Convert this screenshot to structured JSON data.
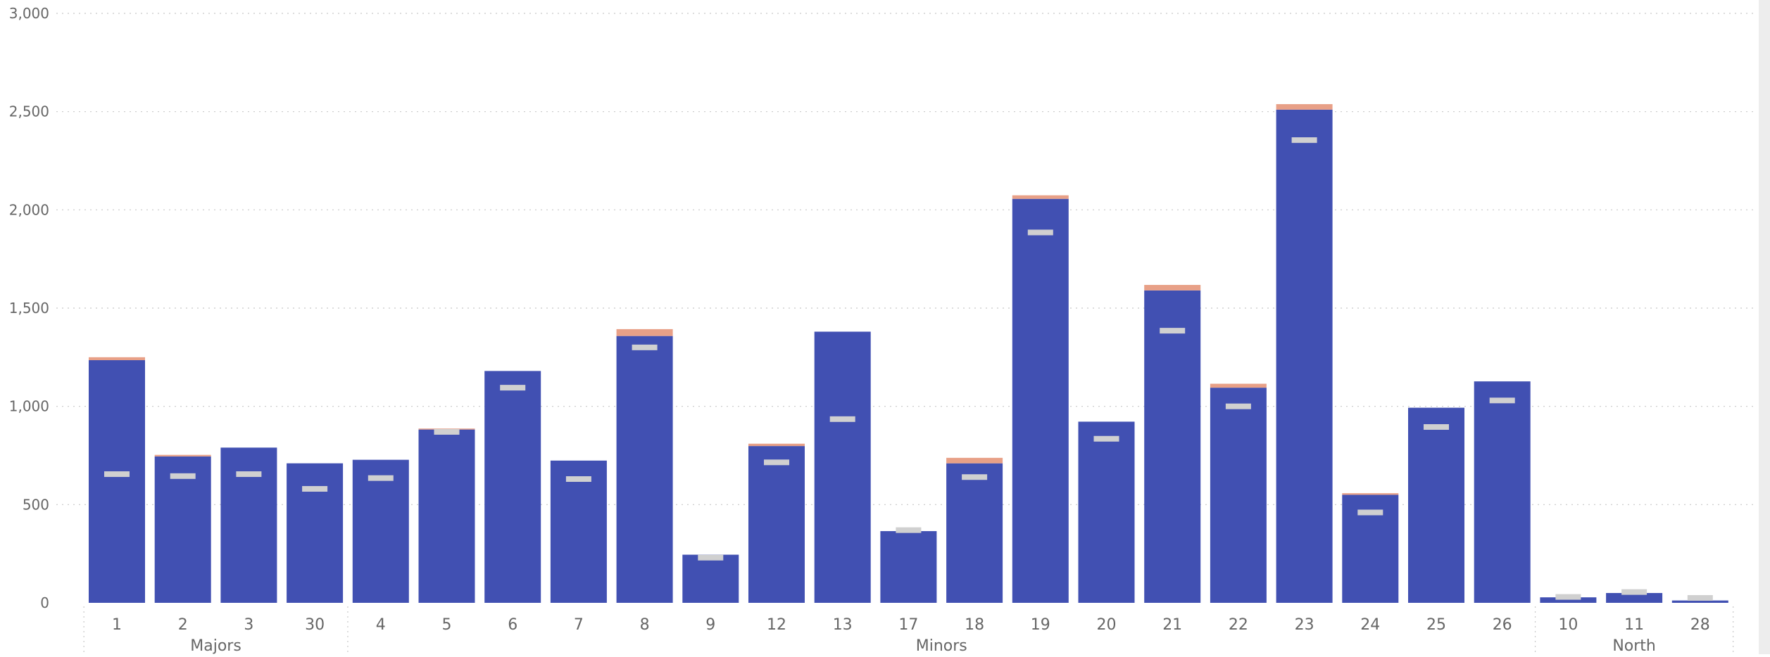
{
  "chart_data": {
    "type": "bar",
    "stacked": true,
    "ylim": [
      0,
      3000
    ],
    "yticks": [
      0,
      500,
      1000,
      1500,
      2000,
      2500,
      3000
    ],
    "ytick_labels": [
      "0",
      "500",
      "1,000",
      "1,500",
      "2,000",
      "2,500",
      "3,000"
    ],
    "grid": "horizontal dotted",
    "groups": [
      {
        "label": "Majors",
        "categories": [
          "1",
          "2",
          "3",
          "30"
        ]
      },
      {
        "label": "Minors",
        "categories": [
          "4",
          "5",
          "6",
          "7",
          "8",
          "9",
          "12",
          "13",
          "17",
          "18",
          "19",
          "20",
          "21",
          "22",
          "23",
          "24",
          "25",
          "26"
        ]
      },
      {
        "label": "North",
        "categories": [
          "10",
          "11",
          "28"
        ]
      }
    ],
    "categories": [
      "1",
      "2",
      "3",
      "30",
      "4",
      "5",
      "6",
      "7",
      "8",
      "9",
      "12",
      "13",
      "17",
      "18",
      "19",
      "20",
      "21",
      "22",
      "23",
      "24",
      "25",
      "26",
      "10",
      "11",
      "28"
    ],
    "series": [
      {
        "color": "#4150b2",
        "values": [
          1235,
          745,
          790,
          710,
          728,
          882,
          1180,
          724,
          1358,
          245,
          798,
          1380,
          365,
          710,
          2056,
          922,
          1590,
          1095,
          2510,
          550,
          993,
          1127,
          28,
          50,
          12
        ]
      },
      {
        "color": "#e8a087",
        "values": [
          15,
          8,
          0,
          0,
          0,
          5,
          0,
          0,
          35,
          0,
          12,
          0,
          0,
          28,
          18,
          0,
          28,
          20,
          28,
          8,
          0,
          0,
          0,
          0,
          0
        ]
      }
    ],
    "markers": {
      "color": "#d0d0d0",
      "values": [
        655,
        645,
        655,
        580,
        635,
        870,
        1095,
        630,
        1300,
        230,
        715,
        935,
        370,
        640,
        1885,
        835,
        1385,
        1000,
        2355,
        460,
        895,
        1030,
        30,
        55,
        25
      ]
    }
  }
}
